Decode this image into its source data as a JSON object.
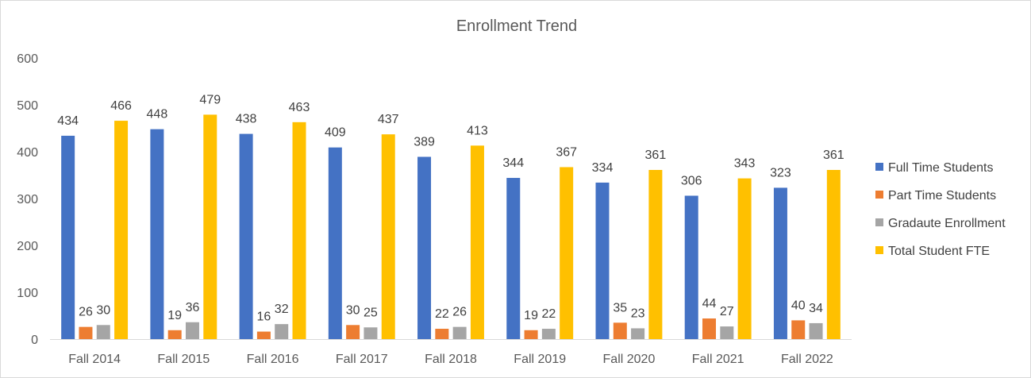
{
  "chart_data": {
    "type": "bar",
    "title": "Enrollment Trend",
    "categories": [
      "Fall 2014",
      "Fall 2015",
      "Fall 2016",
      "Fall 2017",
      "Fall 2018",
      "Fall 2019",
      "Fall 2020",
      "Fall 2021",
      "Fall 2022"
    ],
    "series": [
      {
        "name": "Full Time Students",
        "color": "#4472C4",
        "values": [
          434,
          448,
          438,
          409,
          389,
          344,
          334,
          306,
          323
        ]
      },
      {
        "name": "Part Time Students",
        "color": "#ED7D31",
        "values": [
          26,
          19,
          16,
          30,
          22,
          19,
          35,
          44,
          40
        ]
      },
      {
        "name": "Gradaute Enrollment",
        "color": "#A5A5A5",
        "values": [
          30,
          36,
          32,
          25,
          26,
          22,
          23,
          27,
          34
        ]
      },
      {
        "name": "Total Student FTE",
        "color": "#FFC000",
        "values": [
          466,
          479,
          463,
          437,
          413,
          367,
          361,
          343,
          361
        ]
      }
    ],
    "yticks": [
      "0",
      "100",
      "200",
      "300",
      "400",
      "500",
      "600"
    ],
    "ylim": [
      0,
      600
    ],
    "xlabel": "",
    "ylabel": "",
    "grid": false,
    "legend_position": "right"
  }
}
